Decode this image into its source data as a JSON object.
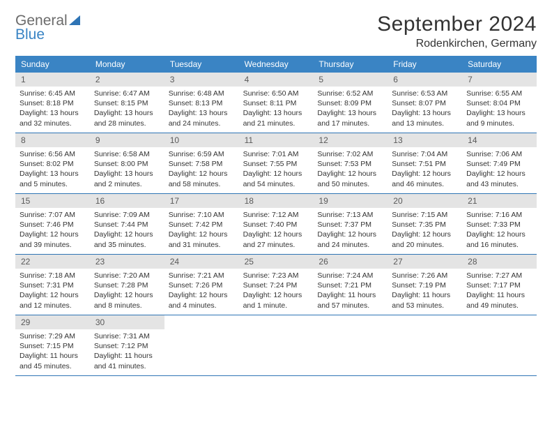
{
  "logo": {
    "word1": "General",
    "word2": "Blue"
  },
  "title": "September 2024",
  "location": "Rodenkirchen, Germany",
  "style": {
    "accent": "#3a84c4",
    "border": "#2e74b5",
    "daynum_bg": "#e4e4e4",
    "page_bg": "#ffffff",
    "grid_cols": 7,
    "title_fontsize": 30,
    "header_fontsize": 12,
    "body_fontsize": 10.5
  },
  "day_headers": [
    "Sunday",
    "Monday",
    "Tuesday",
    "Wednesday",
    "Thursday",
    "Friday",
    "Saturday"
  ],
  "weeks": [
    [
      {
        "n": "1",
        "sr": "Sunrise: 6:45 AM",
        "ss": "Sunset: 8:18 PM",
        "dl": "Daylight: 13 hours and 32 minutes."
      },
      {
        "n": "2",
        "sr": "Sunrise: 6:47 AM",
        "ss": "Sunset: 8:15 PM",
        "dl": "Daylight: 13 hours and 28 minutes."
      },
      {
        "n": "3",
        "sr": "Sunrise: 6:48 AM",
        "ss": "Sunset: 8:13 PM",
        "dl": "Daylight: 13 hours and 24 minutes."
      },
      {
        "n": "4",
        "sr": "Sunrise: 6:50 AM",
        "ss": "Sunset: 8:11 PM",
        "dl": "Daylight: 13 hours and 21 minutes."
      },
      {
        "n": "5",
        "sr": "Sunrise: 6:52 AM",
        "ss": "Sunset: 8:09 PM",
        "dl": "Daylight: 13 hours and 17 minutes."
      },
      {
        "n": "6",
        "sr": "Sunrise: 6:53 AM",
        "ss": "Sunset: 8:07 PM",
        "dl": "Daylight: 13 hours and 13 minutes."
      },
      {
        "n": "7",
        "sr": "Sunrise: 6:55 AM",
        "ss": "Sunset: 8:04 PM",
        "dl": "Daylight: 13 hours and 9 minutes."
      }
    ],
    [
      {
        "n": "8",
        "sr": "Sunrise: 6:56 AM",
        "ss": "Sunset: 8:02 PM",
        "dl": "Daylight: 13 hours and 5 minutes."
      },
      {
        "n": "9",
        "sr": "Sunrise: 6:58 AM",
        "ss": "Sunset: 8:00 PM",
        "dl": "Daylight: 13 hours and 2 minutes."
      },
      {
        "n": "10",
        "sr": "Sunrise: 6:59 AM",
        "ss": "Sunset: 7:58 PM",
        "dl": "Daylight: 12 hours and 58 minutes."
      },
      {
        "n": "11",
        "sr": "Sunrise: 7:01 AM",
        "ss": "Sunset: 7:55 PM",
        "dl": "Daylight: 12 hours and 54 minutes."
      },
      {
        "n": "12",
        "sr": "Sunrise: 7:02 AM",
        "ss": "Sunset: 7:53 PM",
        "dl": "Daylight: 12 hours and 50 minutes."
      },
      {
        "n": "13",
        "sr": "Sunrise: 7:04 AM",
        "ss": "Sunset: 7:51 PM",
        "dl": "Daylight: 12 hours and 46 minutes."
      },
      {
        "n": "14",
        "sr": "Sunrise: 7:06 AM",
        "ss": "Sunset: 7:49 PM",
        "dl": "Daylight: 12 hours and 43 minutes."
      }
    ],
    [
      {
        "n": "15",
        "sr": "Sunrise: 7:07 AM",
        "ss": "Sunset: 7:46 PM",
        "dl": "Daylight: 12 hours and 39 minutes."
      },
      {
        "n": "16",
        "sr": "Sunrise: 7:09 AM",
        "ss": "Sunset: 7:44 PM",
        "dl": "Daylight: 12 hours and 35 minutes."
      },
      {
        "n": "17",
        "sr": "Sunrise: 7:10 AM",
        "ss": "Sunset: 7:42 PM",
        "dl": "Daylight: 12 hours and 31 minutes."
      },
      {
        "n": "18",
        "sr": "Sunrise: 7:12 AM",
        "ss": "Sunset: 7:40 PM",
        "dl": "Daylight: 12 hours and 27 minutes."
      },
      {
        "n": "19",
        "sr": "Sunrise: 7:13 AM",
        "ss": "Sunset: 7:37 PM",
        "dl": "Daylight: 12 hours and 24 minutes."
      },
      {
        "n": "20",
        "sr": "Sunrise: 7:15 AM",
        "ss": "Sunset: 7:35 PM",
        "dl": "Daylight: 12 hours and 20 minutes."
      },
      {
        "n": "21",
        "sr": "Sunrise: 7:16 AM",
        "ss": "Sunset: 7:33 PM",
        "dl": "Daylight: 12 hours and 16 minutes."
      }
    ],
    [
      {
        "n": "22",
        "sr": "Sunrise: 7:18 AM",
        "ss": "Sunset: 7:31 PM",
        "dl": "Daylight: 12 hours and 12 minutes."
      },
      {
        "n": "23",
        "sr": "Sunrise: 7:20 AM",
        "ss": "Sunset: 7:28 PM",
        "dl": "Daylight: 12 hours and 8 minutes."
      },
      {
        "n": "24",
        "sr": "Sunrise: 7:21 AM",
        "ss": "Sunset: 7:26 PM",
        "dl": "Daylight: 12 hours and 4 minutes."
      },
      {
        "n": "25",
        "sr": "Sunrise: 7:23 AM",
        "ss": "Sunset: 7:24 PM",
        "dl": "Daylight: 12 hours and 1 minute."
      },
      {
        "n": "26",
        "sr": "Sunrise: 7:24 AM",
        "ss": "Sunset: 7:21 PM",
        "dl": "Daylight: 11 hours and 57 minutes."
      },
      {
        "n": "27",
        "sr": "Sunrise: 7:26 AM",
        "ss": "Sunset: 7:19 PM",
        "dl": "Daylight: 11 hours and 53 minutes."
      },
      {
        "n": "28",
        "sr": "Sunrise: 7:27 AM",
        "ss": "Sunset: 7:17 PM",
        "dl": "Daylight: 11 hours and 49 minutes."
      }
    ],
    [
      {
        "n": "29",
        "sr": "Sunrise: 7:29 AM",
        "ss": "Sunset: 7:15 PM",
        "dl": "Daylight: 11 hours and 45 minutes."
      },
      {
        "n": "30",
        "sr": "Sunrise: 7:31 AM",
        "ss": "Sunset: 7:12 PM",
        "dl": "Daylight: 11 hours and 41 minutes."
      },
      null,
      null,
      null,
      null,
      null
    ]
  ]
}
